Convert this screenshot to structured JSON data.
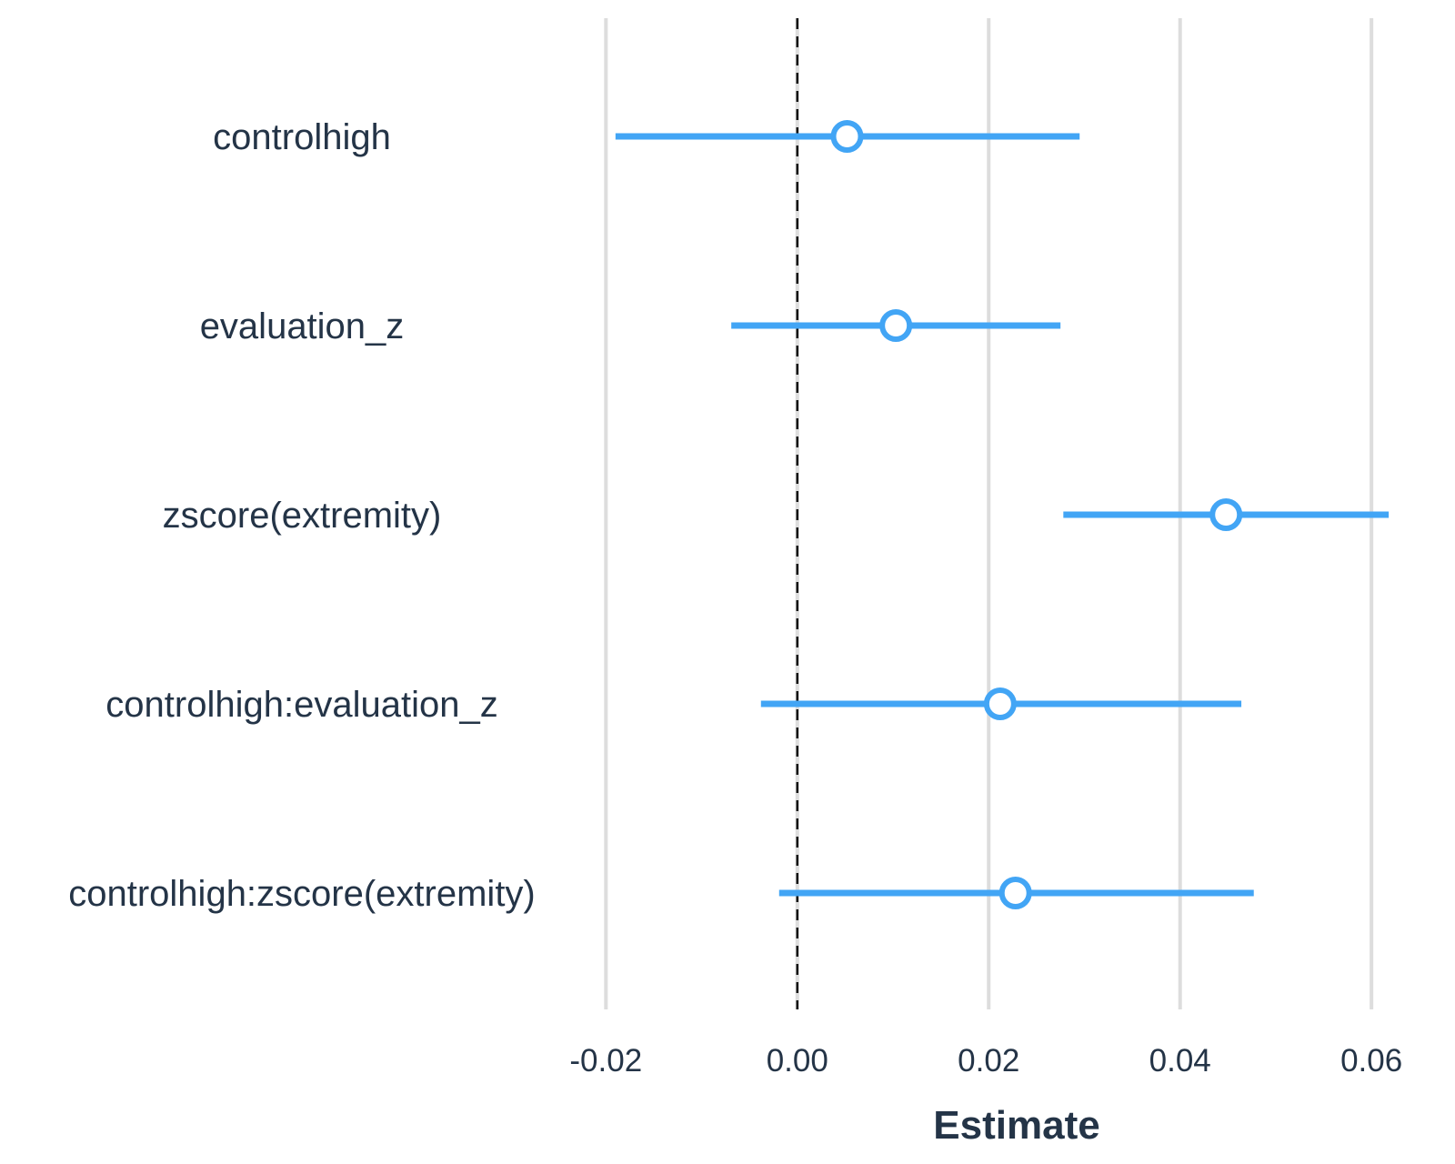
{
  "chart_data": {
    "type": "forest",
    "xlabel": "Estimate",
    "ylabel": "",
    "xlim": [
      -0.0225,
      0.0635
    ],
    "xticks": [
      -0.02,
      0.0,
      0.02,
      0.04,
      0.06
    ],
    "xtick_labels": [
      "-0.02",
      "0.00",
      "0.02",
      "0.04",
      "0.06"
    ],
    "reference_line": 0.0,
    "grid": "vertical",
    "legend": "none",
    "colors": {
      "point": "#42a5f5",
      "interval": "#42a5f5",
      "grid": "#dddddd",
      "reference": "#111111",
      "text": "#243447"
    },
    "terms": [
      {
        "label": "controlhigh",
        "estimate": 0.0052,
        "lower": -0.019,
        "upper": 0.0295
      },
      {
        "label": "evaluation_z",
        "estimate": 0.0103,
        "lower": -0.0069,
        "upper": 0.0275
      },
      {
        "label": "zscore(extremity)",
        "estimate": 0.0448,
        "lower": 0.0278,
        "upper": 0.0618
      },
      {
        "label": "controlhigh:evaluation_z",
        "estimate": 0.0212,
        "lower": -0.0038,
        "upper": 0.0464
      },
      {
        "label": "controlhigh:zscore(extremity)",
        "estimate": 0.0228,
        "lower": -0.0019,
        "upper": 0.0477
      }
    ]
  }
}
